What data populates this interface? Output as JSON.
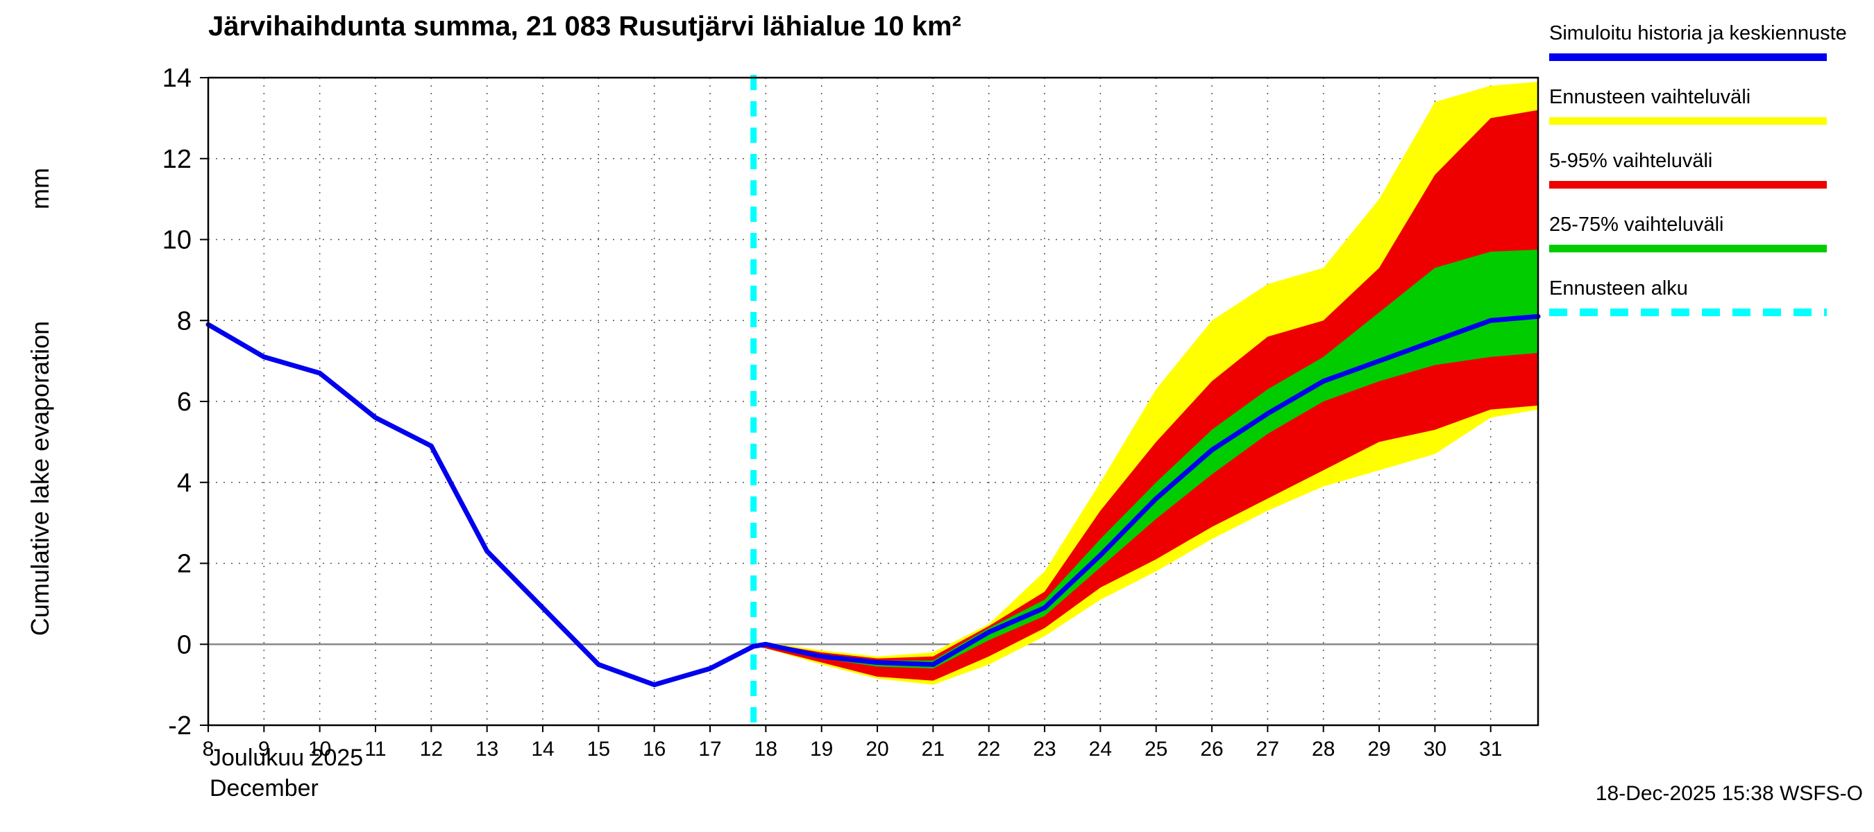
{
  "title": "Järvihaihdunta summa, 21 083 Rusutjärvi lähialue 10 km²",
  "ylabel": "Cumulative lake evaporation",
  "ylabel_unit": "mm",
  "xaxis_month": "Joulukuu  2025",
  "xaxis_month_en": "December",
  "footer": "18-Dec-2025 15:38 WSFS-O",
  "legend": {
    "items": [
      {
        "label": "Simuloitu historia ja keskiennuste",
        "color": "#0000ee",
        "style": "solid"
      },
      {
        "label": "Ennusteen vaihteluväli",
        "color": "#ffff00",
        "style": "solid"
      },
      {
        "label": "5-95% vaihteluväli",
        "color": "#ee0000",
        "style": "solid"
      },
      {
        "label": "25-75% vaihteluväli",
        "color": "#00cc00",
        "style": "solid"
      },
      {
        "label": "Ennusteen alku",
        "color": "#00ffff",
        "style": "dashed"
      }
    ]
  },
  "chart_data": {
    "type": "line+bands",
    "title": "Järvihaihdunta summa, 21 083 Rusutjärvi lähialue 10 km²",
    "xlabel": "Joulukuu 2025 / December",
    "ylabel": "Cumulative lake evaporation (mm)",
    "xlim": [
      8,
      31.85
    ],
    "ylim": [
      -2,
      14
    ],
    "xticks": [
      8,
      9,
      10,
      11,
      12,
      13,
      14,
      15,
      16,
      17,
      18,
      19,
      20,
      21,
      22,
      23,
      24,
      25,
      26,
      27,
      28,
      29,
      30,
      31
    ],
    "yticks": [
      -2,
      0,
      2,
      4,
      6,
      8,
      10,
      12,
      14
    ],
    "grid": true,
    "legend_position": "right",
    "forecast_start_x": 17.78,
    "mean": {
      "name": "Simuloitu historia ja keskiennuste",
      "x": [
        8,
        9,
        10,
        11,
        12,
        13,
        14,
        15,
        16,
        17,
        17.78,
        18,
        19,
        20,
        21,
        22,
        23,
        24,
        25,
        26,
        27,
        28,
        29,
        30,
        31,
        31.85
      ],
      "y": [
        7.9,
        7.1,
        6.7,
        5.6,
        4.9,
        2.3,
        0.9,
        -0.5,
        -1.0,
        -0.6,
        -0.05,
        0.0,
        -0.3,
        -0.45,
        -0.5,
        0.3,
        0.9,
        2.2,
        3.6,
        4.8,
        5.7,
        6.5,
        7.0,
        7.5,
        8.0,
        8.1
      ]
    },
    "band_full": {
      "name": "Ennusteen vaihteluväli",
      "x": [
        17.78,
        18,
        19,
        20,
        21,
        22,
        23,
        24,
        25,
        26,
        27,
        28,
        29,
        30,
        31,
        31.85
      ],
      "lo": [
        -0.05,
        -0.1,
        -0.5,
        -0.85,
        -1.0,
        -0.5,
        0.2,
        1.1,
        1.8,
        2.6,
        3.3,
        3.9,
        4.3,
        4.7,
        5.6,
        5.8
      ],
      "hi": [
        -0.05,
        0.05,
        -0.15,
        -0.3,
        -0.2,
        0.5,
        1.8,
        4.0,
        6.3,
        8.0,
        8.9,
        9.3,
        11.0,
        13.4,
        13.8,
        13.9
      ]
    },
    "band_5_95": {
      "name": "5-95% vaihteluväli",
      "x": [
        17.78,
        18,
        19,
        20,
        21,
        22,
        23,
        24,
        25,
        26,
        27,
        28,
        29,
        30,
        31,
        31.85
      ],
      "lo": [
        -0.05,
        -0.1,
        -0.45,
        -0.8,
        -0.9,
        -0.3,
        0.4,
        1.4,
        2.1,
        2.9,
        3.6,
        4.3,
        5.0,
        5.3,
        5.8,
        5.9
      ],
      "hi": [
        -0.05,
        0.03,
        -0.2,
        -0.35,
        -0.3,
        0.45,
        1.3,
        3.3,
        5.0,
        6.5,
        7.6,
        8.0,
        9.3,
        11.6,
        13.0,
        13.2
      ]
    },
    "band_25_75": {
      "name": "25-75% vaihteluväli",
      "x": [
        17.78,
        18,
        19,
        20,
        21,
        22,
        23,
        24,
        25,
        26,
        27,
        28,
        29,
        30,
        31,
        31.85
      ],
      "lo": [
        -0.05,
        -0.05,
        -0.35,
        -0.55,
        -0.6,
        0.1,
        0.7,
        1.9,
        3.1,
        4.2,
        5.2,
        6.0,
        6.5,
        6.9,
        7.1,
        7.2
      ],
      "hi": [
        -0.05,
        0.0,
        -0.25,
        -0.4,
        -0.4,
        0.4,
        1.1,
        2.6,
        4.0,
        5.3,
        6.3,
        7.1,
        8.2,
        9.3,
        9.7,
        9.75
      ]
    },
    "colors": {
      "mean": "#0000ee",
      "band_full": "#ffff00",
      "band_5_95": "#ee0000",
      "band_25_75": "#00cc00",
      "forecast_start": "#00ffff",
      "grid": "#555555",
      "zero_line": "#888888",
      "frame": "#000000"
    }
  }
}
